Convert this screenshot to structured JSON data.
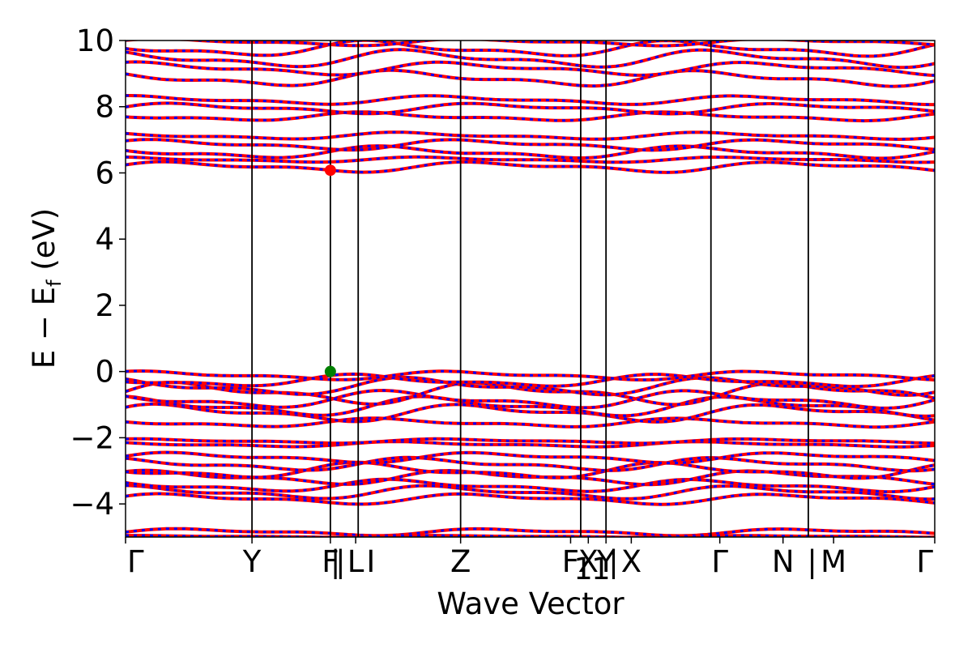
{
  "chart_data": {
    "type": "line",
    "xlabel": "Wave Vector",
    "ylabel": "E − E",
    "ylabel_sub": "f",
    "ylabel_unit": " (eV)",
    "ylim": [
      -5,
      10
    ],
    "xlim": [
      0,
      6.4
    ],
    "y_ticks": [
      -4,
      -2,
      0,
      2,
      4,
      6,
      8,
      10
    ],
    "y_tick_labels": [
      "−4",
      "−2",
      "0",
      "2",
      "4",
      "6",
      "8",
      "10"
    ],
    "grid": false,
    "kpoints": [
      {
        "x": 0.0,
        "label": "Γ"
      },
      {
        "x": 1.0,
        "label": "Y"
      },
      {
        "x": 1.62,
        "label": "F"
      },
      {
        "x": 1.82,
        "label": "L"
      },
      {
        "x": 2.65,
        "label": "Z"
      },
      {
        "x": 3.52,
        "label": "F"
      },
      {
        "x": 3.66,
        "label": "X"
      },
      {
        "x": 3.8,
        "label": "Y"
      },
      {
        "x": 4.0,
        "label": "X"
      },
      {
        "x": 4.7,
        "label": "Γ"
      },
      {
        "x": 5.2,
        "label": "N"
      },
      {
        "x": 5.6,
        "label": "M"
      },
      {
        "x": 6.4,
        "label": "Γ"
      }
    ],
    "kpoint_extra_labels": [
      {
        "x": 1.66,
        "label": "|"
      },
      {
        "x": 1.7,
        "label": "|"
      },
      {
        "x": 1.94,
        "label": "I"
      },
      {
        "x": 3.62,
        "label": "1"
      },
      {
        "x": 3.76,
        "label": "1"
      },
      {
        "x": 3.86,
        "label": "|"
      },
      {
        "x": 5.43,
        "label": "|"
      }
    ],
    "boundaries_x": [
      1.0,
      1.62,
      1.84,
      2.65,
      3.6,
      3.8,
      4.63,
      5.4
    ],
    "series": [
      {
        "color": "#ff0000",
        "style": "solid"
      },
      {
        "color": "#0000ff",
        "style": "dotted"
      }
    ],
    "bands": [
      {
        "base": -4.85,
        "amp": 0.08,
        "phase": 0.0
      },
      {
        "base": -4.98,
        "amp": 0.02,
        "phase": 1.0
      },
      {
        "base": -3.85,
        "amp": 0.12,
        "phase": 0.4
      },
      {
        "base": -3.65,
        "amp": 0.15,
        "phase": 1.2
      },
      {
        "base": -3.45,
        "amp": 0.14,
        "phase": 2.1
      },
      {
        "base": -3.2,
        "amp": 0.16,
        "phase": 0.7
      },
      {
        "base": -3.0,
        "amp": 0.18,
        "phase": 2.8
      },
      {
        "base": -2.8,
        "amp": 0.15,
        "phase": 1.6
      },
      {
        "base": -2.6,
        "amp": 0.12,
        "phase": 0.2
      },
      {
        "base": -2.2,
        "amp": 0.06,
        "phase": 1.9
      },
      {
        "base": -2.1,
        "amp": 0.05,
        "phase": 0.9
      },
      {
        "base": -1.55,
        "amp": 0.1,
        "phase": 2.4
      },
      {
        "base": -1.25,
        "amp": 0.2,
        "phase": 0.5
      },
      {
        "base": -1.05,
        "amp": 0.22,
        "phase": 1.3
      },
      {
        "base": -0.85,
        "amp": 0.2,
        "phase": 2.2
      },
      {
        "base": -0.65,
        "amp": 0.25,
        "phase": 0.1
      },
      {
        "base": -0.45,
        "amp": 0.2,
        "phase": 1.7
      },
      {
        "base": -0.28,
        "amp": 0.14,
        "phase": 2.9
      },
      {
        "base": -0.12,
        "amp": 0.1,
        "phase": 0.8
      },
      {
        "base": 6.18,
        "amp": 0.12,
        "phase": 0.3
      },
      {
        "base": 6.4,
        "amp": 0.06,
        "phase": 1.4
      },
      {
        "base": 6.62,
        "amp": 0.14,
        "phase": 2.3
      },
      {
        "base": 6.85,
        "amp": 0.12,
        "phase": 0.6
      },
      {
        "base": 7.12,
        "amp": 0.08,
        "phase": 1.9
      },
      {
        "base": 7.7,
        "amp": 0.1,
        "phase": 2.7
      },
      {
        "base": 7.95,
        "amp": 0.12,
        "phase": 0.2
      },
      {
        "base": 8.2,
        "amp": 0.1,
        "phase": 1.1
      },
      {
        "base": 8.85,
        "amp": 0.18,
        "phase": 2.0
      },
      {
        "base": 9.15,
        "amp": 0.15,
        "phase": 0.9
      },
      {
        "base": 9.45,
        "amp": 0.2,
        "phase": 1.8
      },
      {
        "base": 9.75,
        "amp": 0.18,
        "phase": 2.6
      },
      {
        "base": 9.95,
        "amp": 0.08,
        "phase": 0.4
      }
    ],
    "markers": [
      {
        "x": 1.62,
        "y": 6.08,
        "color": "#ff0000"
      },
      {
        "x": 1.62,
        "y": 0.0,
        "color": "#008000"
      }
    ]
  }
}
